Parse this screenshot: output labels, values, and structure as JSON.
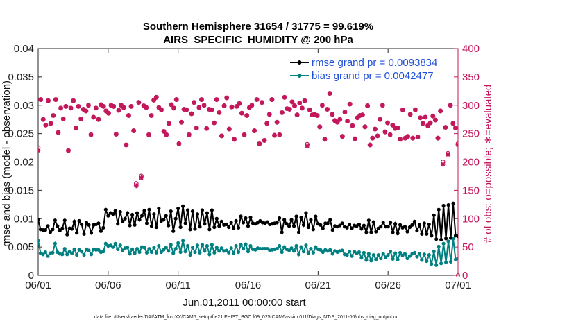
{
  "chart_data": {
    "type": "line",
    "title": "Southern Hemisphere 31654 / 31775 = 99.619%",
    "subtitle": "AIRS_SPECIFIC_HUMIDITY @ 200 hPa",
    "xlabel": "Jun.01,2011 00:00:00 start",
    "ylabel": "rmse and bias (model - observation)",
    "ylabel_right": "# of obs: o=possible; ∗=evaluated",
    "ylim": [
      0,
      0.04
    ],
    "ylim_right": [
      0,
      400
    ],
    "xlim": [
      0,
      30
    ],
    "x_ticks": [
      0,
      5,
      10,
      15,
      20,
      25,
      30
    ],
    "x_tick_labels": [
      "06/01",
      "06/06",
      "06/11",
      "06/16",
      "06/21",
      "06/26",
      "07/01"
    ],
    "y_ticks": [
      0,
      0.005,
      0.01,
      0.015,
      0.02,
      0.025,
      0.03,
      0.035,
      0.04
    ],
    "y_tick_labels": [
      "0",
      "0.005",
      "0.01",
      "0.015",
      "0.02",
      "0.025",
      "0.03",
      "0.035",
      "0.04"
    ],
    "y_ticks_right": [
      0,
      50,
      100,
      150,
      200,
      250,
      300,
      350,
      400
    ],
    "y_tick_labels_right": [
      "0",
      "50",
      "100",
      "150",
      "200",
      "250",
      "300",
      "350",
      "400"
    ],
    "series": [
      {
        "name": "rmse grand pr = 0.0093834",
        "axis": "left",
        "color": "#000000",
        "values": [
          0.0098,
          0.0081,
          0.008,
          0.008,
          0.0087,
          0.0076,
          0.0081,
          0.0097,
          0.0087,
          0.0079,
          0.0083,
          0.0097,
          0.0072,
          0.0083,
          0.0082,
          0.0095,
          0.0075,
          0.0096,
          0.009,
          0.0073,
          0.0093,
          0.0089,
          0.0075,
          0.0089,
          0.009,
          0.0092,
          0.0078,
          0.0084,
          0.0116,
          0.0105,
          0.011,
          0.0108,
          0.0114,
          0.0091,
          0.0112,
          0.0095,
          0.01,
          0.011,
          0.0088,
          0.0107,
          0.0089,
          0.011,
          0.0098,
          0.0105,
          0.0114,
          0.0092,
          0.0116,
          0.0087,
          0.0108,
          0.0085,
          0.0118,
          0.0096,
          0.0098,
          0.0105,
          0.0088,
          0.0113,
          0.0078,
          0.01,
          0.0118,
          0.0085,
          0.0122,
          0.0092,
          0.0115,
          0.0081,
          0.0113,
          0.0082,
          0.0108,
          0.0086,
          0.0115,
          0.0091,
          0.011,
          0.0081,
          0.0115,
          0.0085,
          0.01,
          0.0087,
          0.0095,
          0.0089,
          0.009,
          0.0085,
          0.0093,
          0.0083,
          0.0096,
          0.0084,
          0.0104,
          0.0093,
          0.0101,
          0.0087,
          0.0102,
          0.0092,
          0.0091,
          0.0093,
          0.0096,
          0.0093,
          0.0092,
          0.0094,
          0.009,
          0.0091,
          0.0092,
          0.0093,
          0.0101,
          0.0076,
          0.0098,
          0.0091,
          0.0087,
          0.0098,
          0.0087,
          0.0104,
          0.0076,
          0.0102,
          0.0089,
          0.011,
          0.0085,
          0.0098,
          0.0081,
          0.0104,
          0.0091,
          0.0089,
          0.0083,
          0.0092,
          0.0092,
          0.0098,
          0.008,
          0.0087,
          0.0086,
          0.0088,
          0.0092,
          0.0086,
          0.0084,
          0.009,
          0.0083,
          0.0088,
          0.0087,
          0.009,
          0.0082,
          0.0088,
          0.0076,
          0.0097,
          0.0076,
          0.0094,
          0.0077,
          0.0083,
          0.0086,
          0.0093,
          0.0086,
          0.0086,
          0.0093,
          0.0076,
          0.0091,
          0.0074,
          0.0089,
          0.0084,
          0.0086,
          0.0077,
          0.0085,
          0.0089,
          0.0095,
          0.0079,
          0.0089,
          0.0073,
          0.0092,
          0.0073,
          0.009,
          0.007,
          0.0106,
          0.0064,
          0.0116,
          0.0063,
          0.0123,
          0.0065,
          0.0124,
          0.0066,
          0.0127,
          0.007,
          0.0069
        ]
      },
      {
        "name": "bias grand pr = 0.0042477",
        "axis": "left",
        "color": "#008080",
        "values": [
          0.0061,
          0.0039,
          0.0037,
          0.0041,
          0.0034,
          0.0039,
          0.004,
          0.0056,
          0.0041,
          0.0038,
          0.0037,
          0.0047,
          0.0037,
          0.0042,
          0.0039,
          0.0046,
          0.0036,
          0.0045,
          0.0042,
          0.0036,
          0.0046,
          0.0044,
          0.0037,
          0.0046,
          0.0045,
          0.0045,
          0.0041,
          0.0042,
          0.0056,
          0.0052,
          0.0053,
          0.005,
          0.0056,
          0.0046,
          0.0053,
          0.0044,
          0.0048,
          0.0049,
          0.0038,
          0.0046,
          0.0039,
          0.0047,
          0.0041,
          0.005,
          0.0049,
          0.004,
          0.0047,
          0.0041,
          0.0049,
          0.004,
          0.0052,
          0.0041,
          0.0045,
          0.0049,
          0.0043,
          0.0054,
          0.0039,
          0.0047,
          0.0057,
          0.0041,
          0.0061,
          0.0042,
          0.0052,
          0.0036,
          0.0049,
          0.0041,
          0.0053,
          0.004,
          0.0054,
          0.0043,
          0.0052,
          0.0037,
          0.0054,
          0.004,
          0.0049,
          0.0043,
          0.0048,
          0.0043,
          0.0044,
          0.004,
          0.0048,
          0.0039,
          0.0052,
          0.0041,
          0.0054,
          0.0047,
          0.0055,
          0.0042,
          0.0052,
          0.0046,
          0.0045,
          0.0048,
          0.0047,
          0.0047,
          0.0047,
          0.0047,
          0.0044,
          0.0045,
          0.0046,
          0.0047,
          0.0052,
          0.0041,
          0.005,
          0.0046,
          0.0044,
          0.0048,
          0.0043,
          0.0052,
          0.0037,
          0.005,
          0.0042,
          0.0053,
          0.0039,
          0.0047,
          0.004,
          0.005,
          0.0046,
          0.0045,
          0.0041,
          0.0045,
          0.0043,
          0.0045,
          0.0038,
          0.0043,
          0.0041,
          0.0043,
          0.0044,
          0.0037,
          0.0036,
          0.0042,
          0.0034,
          0.0042,
          0.0039,
          0.0041,
          0.0031,
          0.004,
          0.0027,
          0.0038,
          0.0026,
          0.0036,
          0.0028,
          0.0036,
          0.003,
          0.0038,
          0.0032,
          0.0036,
          0.0042,
          0.0029,
          0.0039,
          0.0028,
          0.004,
          0.0035,
          0.0038,
          0.003,
          0.0034,
          0.0038,
          0.004,
          0.0033,
          0.0038,
          0.0027,
          0.0037,
          0.0025,
          0.0036,
          0.002,
          0.0042,
          0.0018,
          0.0051,
          0.0021,
          0.0056,
          0.0023,
          0.006,
          0.0024,
          0.0065,
          0.0028,
          0.003
        ]
      },
      {
        "name": "obs possible",
        "axis": "right",
        "color": "#c2185b",
        "marker": "o",
        "values": [
          225,
          310,
          275,
          265,
          308,
          268,
          282,
          310,
          252,
          295,
          276,
          298,
          220,
          295,
          308,
          260,
          298,
          276,
          293,
          290,
          300,
          248,
          279,
          295,
          275,
          301,
          298,
          290,
          286,
          300,
          298,
          249,
          291,
          300,
          296,
          230,
          282,
          298,
          255,
          162,
          305,
          175,
          299,
          296,
          248,
          282,
          309,
          314,
          296,
          292,
          254,
          248,
          268,
          301,
          295,
          310,
          232,
          270,
          293,
          292,
          248,
          285,
          305,
          260,
          296,
          310,
          300,
          259,
          293,
          292,
          269,
          310,
          287,
          246,
          299,
          313,
          258,
          297,
          240,
          298,
          303,
          286,
          248,
          282,
          296,
          300,
          255,
          310,
          232,
          305,
          238,
          268,
          284,
          310,
          247,
          270,
          248,
          287,
          314,
          294,
          293,
          306,
          299,
          283,
          304,
          295,
          308,
          231,
          292,
          283,
          284,
          282,
          262,
          300,
          240,
          293,
          321,
          284,
          273,
          270,
          275,
          245,
          288,
          272,
          302,
          264,
          241,
          278,
          282,
          283,
          262,
          299,
          230,
          242,
          258,
          246,
          275,
          300,
          253,
          269,
          248,
          265,
          259,
          260,
          240,
          292,
          242,
          245,
          284,
          242,
          292,
          244,
          278,
          268,
          279,
          264,
          269,
          281,
          274,
          242,
          290,
          200,
          261,
          215,
          300,
          268,
          260,
          232
        ]
      },
      {
        "name": "obs evaluated",
        "axis": "right",
        "color": "#c2185b",
        "marker": "*",
        "values": [
          220,
          310,
          275,
          265,
          308,
          268,
          282,
          310,
          252,
          295,
          276,
          298,
          220,
          295,
          308,
          260,
          298,
          276,
          293,
          290,
          300,
          248,
          279,
          295,
          275,
          301,
          298,
          290,
          286,
          300,
          298,
          249,
          291,
          300,
          296,
          230,
          282,
          298,
          255,
          158,
          305,
          172,
          299,
          296,
          248,
          282,
          309,
          314,
          296,
          292,
          254,
          248,
          268,
          301,
          295,
          310,
          232,
          270,
          293,
          292,
          248,
          285,
          305,
          260,
          296,
          310,
          300,
          259,
          293,
          292,
          269,
          310,
          287,
          246,
          299,
          313,
          258,
          297,
          240,
          298,
          303,
          286,
          248,
          282,
          296,
          300,
          255,
          310,
          232,
          305,
          238,
          268,
          284,
          310,
          247,
          270,
          248,
          287,
          314,
          294,
          293,
          306,
          299,
          283,
          304,
          295,
          308,
          228,
          292,
          283,
          284,
          282,
          262,
          300,
          240,
          293,
          321,
          284,
          273,
          270,
          275,
          245,
          288,
          272,
          302,
          264,
          241,
          278,
          282,
          283,
          262,
          299,
          230,
          242,
          258,
          246,
          275,
          300,
          253,
          269,
          248,
          265,
          259,
          260,
          240,
          292,
          242,
          245,
          284,
          242,
          292,
          244,
          278,
          268,
          279,
          264,
          269,
          281,
          274,
          242,
          290,
          196,
          261,
          213,
          300,
          268,
          260,
          230
        ]
      }
    ],
    "legend": {
      "placement": "top-right",
      "entries": [
        "rmse grand pr = 0.0093834",
        "bias grand pr = 0.0042477"
      ]
    },
    "footnote": "data file: /Users/raeder/DAI/ATM_forcXX/CAM6_setup/f.e21.FHIST_BGC.f09_025.CAM6assim.011/Diags_NTrS_2011-06/obs_diag_output.nc",
    "grid": false
  }
}
